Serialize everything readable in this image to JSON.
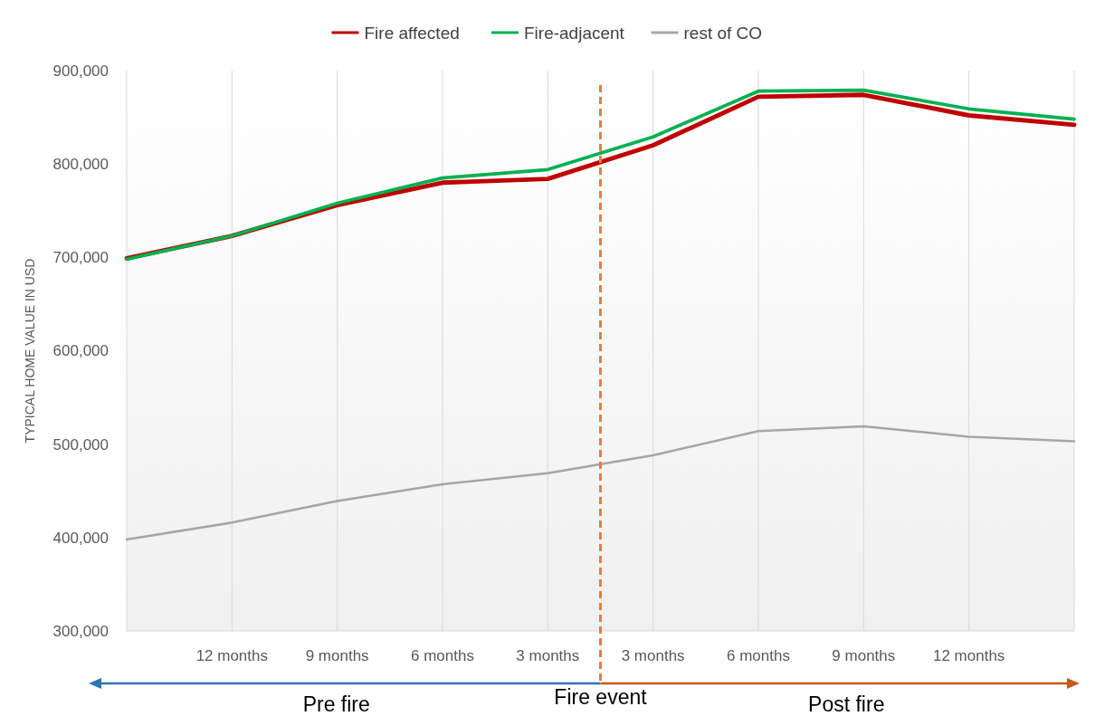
{
  "chart_data": {
    "type": "line",
    "ylabel": "TYPICAL HOME VALUE IN USD",
    "categories": [
      null,
      "12 months",
      "9 months",
      "6 months",
      "3 months",
      "3 months",
      "6 months",
      "9 months",
      "12 months",
      null
    ],
    "series": [
      {
        "name": "Fire affected",
        "color": "#c00000",
        "values": [
          699000,
          723000,
          756000,
          780000,
          784000,
          820000,
          872000,
          874000,
          852000,
          842000
        ]
      },
      {
        "name": "Fire-adjacent",
        "color": "#00b050",
        "values": [
          698000,
          723000,
          758000,
          785000,
          794000,
          829000,
          878000,
          879000,
          859000,
          848000
        ]
      },
      {
        "name": "rest of CO",
        "color": "#a6a6a6",
        "values": [
          398000,
          416000,
          439000,
          457000,
          469000,
          488000,
          514000,
          519000,
          508000,
          503000
        ]
      }
    ],
    "ylim": [
      300000,
      900000
    ],
    "yticks": [
      {
        "value": 300000,
        "label": "300,000"
      },
      {
        "value": 400000,
        "label": "400,000"
      },
      {
        "value": 500000,
        "label": "500,000"
      },
      {
        "value": 600000,
        "label": "600,000"
      },
      {
        "value": 700000,
        "label": "700,000"
      },
      {
        "value": 800000,
        "label": "800,000"
      },
      {
        "value": 900000,
        "label": "900,000"
      }
    ],
    "grid": "x",
    "legend": "top",
    "marker": "none",
    "ref_lines": [
      {
        "axis": "x",
        "value": "3 months",
        "label": "Fire event",
        "color": "#ed7d31",
        "line_style": "dashed"
      }
    ],
    "annotations": [
      "Pre fire",
      "Post fire"
    ]
  }
}
